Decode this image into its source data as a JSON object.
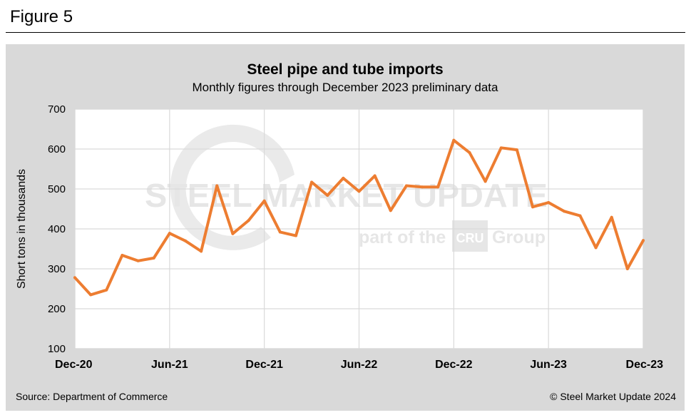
{
  "figure_label": "Figure 5",
  "source": "Source: Department of Commerce",
  "copyright": "© Steel Market Update 2024",
  "watermark": {
    "brand_line": "STEEL MARKET UPDATE",
    "sub_line_before": "part of the",
    "badge": "CRU",
    "sub_line_after": "Group"
  },
  "colors": {
    "line": "#ed7d31",
    "panel": "#d9d9d9",
    "plot_bg": "#ffffff",
    "grid": "#d9d9d9"
  },
  "chart_data": {
    "type": "line",
    "title": "Steel pipe and tube imports",
    "subtitle": "Monthly figures through December 2023 preliminary data",
    "xlabel": "",
    "ylabel": "Short tons in thousands",
    "ylim": [
      100,
      700
    ],
    "yticks": [
      100,
      200,
      300,
      400,
      500,
      600,
      700
    ],
    "xtick_labels": [
      "Dec-20",
      "Jun-21",
      "Dec-21",
      "Jun-22",
      "Dec-22",
      "Jun-23",
      "Dec-23"
    ],
    "grid": true,
    "legend": "none",
    "x": [
      "Dec-20",
      "Jan-21",
      "Feb-21",
      "Mar-21",
      "Apr-21",
      "May-21",
      "Jun-21",
      "Jul-21",
      "Aug-21",
      "Sep-21",
      "Oct-21",
      "Nov-21",
      "Dec-21",
      "Jan-22",
      "Feb-22",
      "Mar-22",
      "Apr-22",
      "May-22",
      "Jun-22",
      "Jul-22",
      "Aug-22",
      "Sep-22",
      "Oct-22",
      "Nov-22",
      "Dec-22",
      "Jan-23",
      "Feb-23",
      "Mar-23",
      "Apr-23",
      "May-23",
      "Jun-23",
      "Jul-23",
      "Aug-23",
      "Sep-23",
      "Oct-23",
      "Nov-23",
      "Dec-23"
    ],
    "values": [
      278,
      235,
      247,
      334,
      320,
      327,
      389,
      370,
      344,
      508,
      388,
      421,
      470,
      392,
      383,
      517,
      484,
      527,
      494,
      533,
      446,
      508,
      505,
      505,
      622,
      591,
      519,
      603,
      598,
      455,
      466,
      444,
      433,
      353,
      429,
      300,
      371
    ]
  }
}
